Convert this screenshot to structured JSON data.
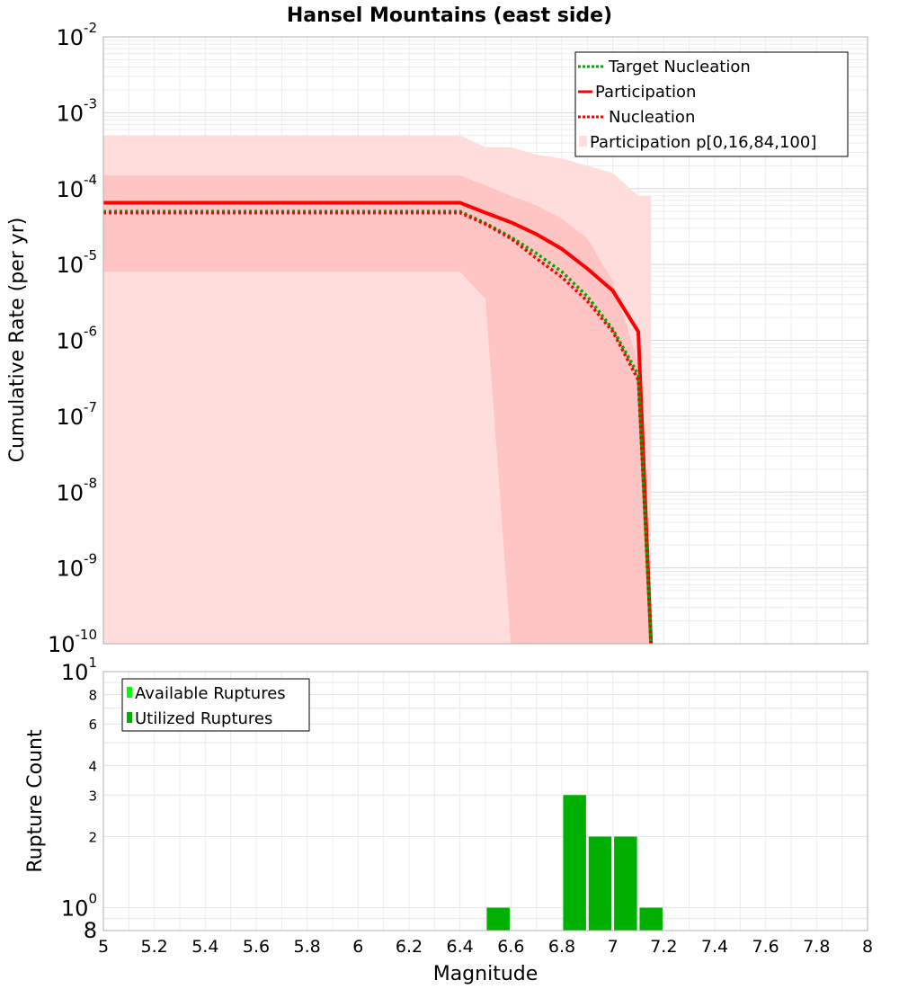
{
  "chart_data": [
    {
      "type": "line",
      "title": "Hansel Mountains (east side)",
      "xlabel": "",
      "ylabel": "Cumulative Rate (per yr)",
      "xlim": [
        5,
        8
      ],
      "ylim": [
        1e-10,
        0.01
      ],
      "yscale": "log",
      "grid": true,
      "legend_position": "top-right",
      "y_tick_labels": [
        {
          "base": "10",
          "exp": "-2"
        },
        {
          "base": "10",
          "exp": "-3"
        },
        {
          "base": "10",
          "exp": "-4"
        },
        {
          "base": "10",
          "exp": "-5"
        },
        {
          "base": "10",
          "exp": "-6"
        },
        {
          "base": "10",
          "exp": "-7"
        },
        {
          "base": "10",
          "exp": "-8"
        },
        {
          "base": "10",
          "exp": "-9"
        },
        {
          "base": "10",
          "exp": "-10"
        }
      ],
      "x": [
        5.0,
        5.1,
        5.2,
        5.3,
        5.4,
        5.5,
        5.6,
        5.7,
        5.8,
        5.9,
        6.0,
        6.1,
        6.2,
        6.3,
        6.4,
        6.5,
        6.6,
        6.7,
        6.8,
        6.9,
        7.0,
        7.1,
        7.15
      ],
      "bands": {
        "name": "Participation p[0,16,84,100]",
        "color": "#ffdddd",
        "color_inner": "#ffc4c4",
        "p100": [
          0.0005,
          0.0005,
          0.0005,
          0.0005,
          0.0005,
          0.0005,
          0.0005,
          0.0005,
          0.0005,
          0.0005,
          0.0005,
          0.0005,
          0.0005,
          0.0005,
          0.0005,
          0.00035,
          0.00035,
          0.00028,
          0.00025,
          0.0002,
          0.00016,
          8e-05,
          8e-05
        ],
        "p84": [
          0.00015,
          0.00015,
          0.00015,
          0.00015,
          0.00015,
          0.00015,
          0.00015,
          0.00015,
          0.00015,
          0.00015,
          0.00015,
          0.00015,
          0.00015,
          0.00015,
          0.00015,
          0.00011,
          8e-05,
          6e-05,
          4e-05,
          2.2e-05,
          6e-06,
          5e-07,
          1e-10
        ],
        "p16": [
          8e-06,
          8e-06,
          8e-06,
          8e-06,
          8e-06,
          8e-06,
          8e-06,
          8e-06,
          8e-06,
          8e-06,
          8e-06,
          8e-06,
          8e-06,
          8e-06,
          8e-06,
          3.5e-06,
          1e-10,
          1e-10,
          1e-10,
          1e-10,
          1e-10,
          1e-10,
          1e-10
        ],
        "p0": [
          8e-06,
          8e-06,
          8e-06,
          8e-06,
          8e-06,
          8e-06,
          8e-06,
          8e-06,
          8e-06,
          8e-06,
          8e-06,
          8e-06,
          8e-06,
          8e-06,
          8e-06,
          3.5e-06,
          1e-10,
          1e-10,
          1e-10,
          1e-10,
          1e-10,
          1e-10,
          1e-10
        ]
      },
      "series": [
        {
          "name": "Target Nucleation",
          "color": "#00aa00",
          "dash": "dotted",
          "values": [
            5e-05,
            5e-05,
            5e-05,
            5e-05,
            5e-05,
            5e-05,
            5e-05,
            5e-05,
            5e-05,
            5e-05,
            5e-05,
            5e-05,
            5e-05,
            5e-05,
            5e-05,
            3.5e-05,
            2.3e-05,
            1.4e-05,
            8e-06,
            3.8e-06,
            1.4e-06,
            3.5e-07,
            1e-10
          ]
        },
        {
          "name": "Participation",
          "color": "#ff0000",
          "dash": "solid",
          "values": [
            6.5e-05,
            6.5e-05,
            6.5e-05,
            6.5e-05,
            6.5e-05,
            6.5e-05,
            6.5e-05,
            6.5e-05,
            6.5e-05,
            6.5e-05,
            6.5e-05,
            6.5e-05,
            6.5e-05,
            6.5e-05,
            6.5e-05,
            4.8e-05,
            3.6e-05,
            2.5e-05,
            1.6e-05,
            8.8e-06,
            4.5e-06,
            1.3e-06,
            1e-10
          ]
        },
        {
          "name": "Nucleation",
          "color": "#ff0000",
          "dash": "dotted",
          "values": [
            4.8e-05,
            4.8e-05,
            4.8e-05,
            4.8e-05,
            4.8e-05,
            4.8e-05,
            4.8e-05,
            4.8e-05,
            4.8e-05,
            4.8e-05,
            4.8e-05,
            4.8e-05,
            4.8e-05,
            4.8e-05,
            4.8e-05,
            3.4e-05,
            2.2e-05,
            1.2e-05,
            6.8e-06,
            3.3e-06,
            1.3e-06,
            3e-07,
            1e-10
          ]
        }
      ]
    },
    {
      "type": "bar",
      "xlabel": "Magnitude",
      "ylabel": "Rupture Count",
      "xlim": [
        5,
        8
      ],
      "ylim": [
        0.8,
        10
      ],
      "yscale": "log",
      "grid": true,
      "legend_position": "top-left",
      "x_tick_labels": [
        "5",
        "5.2",
        "5.4",
        "5.6",
        "5.8",
        "6",
        "6.2",
        "6.4",
        "6.6",
        "6.8",
        "7",
        "7.2",
        "7.4",
        "7.6",
        "7.8",
        "8"
      ],
      "y_tick_labels": [
        {
          "value": 10,
          "base": "10",
          "exp": "1"
        },
        {
          "value": 8,
          "label": "8"
        },
        {
          "value": 6,
          "label": "6"
        },
        {
          "value": 4,
          "label": "4"
        },
        {
          "value": 3,
          "label": "3"
        },
        {
          "value": 2,
          "label": "2"
        },
        {
          "value": 1,
          "base": "10",
          "exp": "0"
        },
        {
          "value": 0.8,
          "label": "8"
        }
      ],
      "bar_width": 0.09,
      "series": [
        {
          "name": "Available Ruptures",
          "color": "#00ff00",
          "x": [],
          "values": []
        },
        {
          "name": "Utilized Ruptures",
          "color": "#00b000",
          "x": [
            6.55,
            6.85,
            6.95,
            7.05,
            7.15
          ],
          "values": [
            1,
            3,
            2,
            2,
            1
          ]
        }
      ]
    }
  ]
}
